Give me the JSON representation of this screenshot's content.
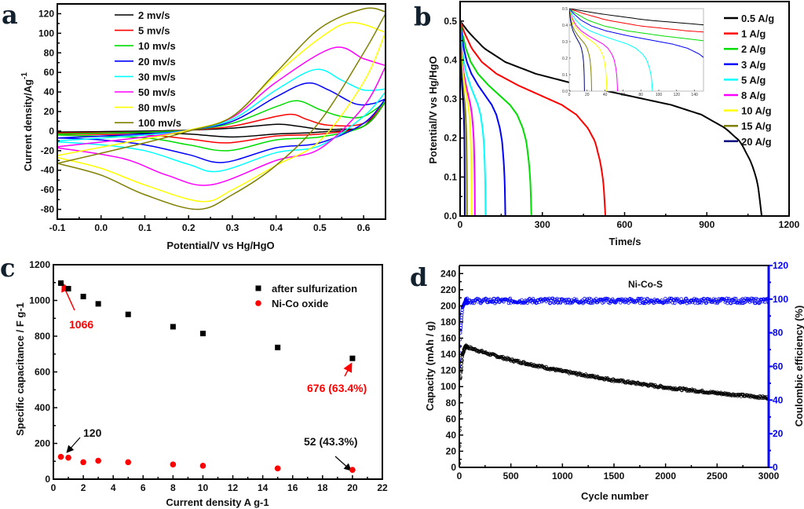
{
  "chart_data": [
    {
      "panel_label": "a",
      "type": "line",
      "title": "",
      "xlabel": "Potential/V vs Hg/HgO",
      "ylabel": "Current density/Ag",
      "ylabel_sup": "-1",
      "xlim": [
        -0.1,
        0.65
      ],
      "ylim": [
        -90,
        130
      ],
      "xticks": [
        "-0.1",
        "0.0",
        "0.1",
        "0.2",
        "0.3",
        "0.4",
        "0.5",
        "0.6"
      ],
      "yticks": [
        "-80",
        "-60",
        "-40",
        "-20",
        "0",
        "20",
        "40",
        "60",
        "80",
        "100",
        "120"
      ],
      "legend_position": "top-left",
      "series": [
        {
          "name": "2 mv/s",
          "color": "#000000",
          "forward": [
            [
              -0.1,
              -1
            ],
            [
              0.1,
              0
            ],
            [
              0.2,
              1
            ],
            [
              0.3,
              3
            ],
            [
              0.4,
              7
            ],
            [
              0.45,
              5
            ],
            [
              0.5,
              2
            ],
            [
              0.55,
              2
            ],
            [
              0.6,
              5
            ],
            [
              0.65,
              30
            ]
          ],
          "reverse": [
            [
              0.65,
              30
            ],
            [
              0.6,
              5
            ],
            [
              0.5,
              -1
            ],
            [
              0.4,
              -3
            ],
            [
              0.3,
              -6
            ],
            [
              0.2,
              -3
            ],
            [
              0.1,
              -2
            ],
            [
              -0.1,
              -2
            ]
          ]
        },
        {
          "name": "5 mv/s",
          "color": "#ff0000",
          "forward": [
            [
              -0.1,
              -2
            ],
            [
              0.1,
              -1
            ],
            [
              0.2,
              1
            ],
            [
              0.3,
              5
            ],
            [
              0.4,
              15
            ],
            [
              0.44,
              17
            ],
            [
              0.47,
              12
            ],
            [
              0.52,
              6
            ],
            [
              0.6,
              8
            ],
            [
              0.65,
              30
            ]
          ],
          "reverse": [
            [
              0.65,
              30
            ],
            [
              0.6,
              5
            ],
            [
              0.5,
              -3
            ],
            [
              0.4,
              -5
            ],
            [
              0.29,
              -12
            ],
            [
              0.2,
              -8
            ],
            [
              0.1,
              -4
            ],
            [
              -0.1,
              -3
            ]
          ]
        },
        {
          "name": "10 mv/s",
          "color": "#00dd00",
          "forward": [
            [
              -0.1,
              -3
            ],
            [
              0.1,
              -1
            ],
            [
              0.2,
              1
            ],
            [
              0.3,
              8
            ],
            [
              0.4,
              25
            ],
            [
              0.45,
              31
            ],
            [
              0.5,
              22
            ],
            [
              0.55,
              15
            ],
            [
              0.6,
              15
            ],
            [
              0.65,
              30
            ]
          ],
          "reverse": [
            [
              0.65,
              30
            ],
            [
              0.6,
              5
            ],
            [
              0.5,
              -6
            ],
            [
              0.4,
              -9
            ],
            [
              0.29,
              -20
            ],
            [
              0.2,
              -14
            ],
            [
              0.1,
              -7
            ],
            [
              -0.1,
              -4
            ]
          ]
        },
        {
          "name": "20 mv/s",
          "color": "#0000ff",
          "forward": [
            [
              -0.1,
              -7
            ],
            [
              0.1,
              -3
            ],
            [
              0.2,
              1
            ],
            [
              0.3,
              10
            ],
            [
              0.4,
              35
            ],
            [
              0.47,
              49
            ],
            [
              0.52,
              42
            ],
            [
              0.58,
              28
            ],
            [
              0.62,
              28
            ],
            [
              0.65,
              33
            ]
          ],
          "reverse": [
            [
              0.65,
              33
            ],
            [
              0.6,
              8
            ],
            [
              0.5,
              -12
            ],
            [
              0.4,
              -17
            ],
            [
              0.28,
              -32
            ],
            [
              0.2,
              -24
            ],
            [
              0.1,
              -14
            ],
            [
              0,
              -9
            ],
            [
              -0.1,
              -7
            ]
          ]
        },
        {
          "name": "30 mv/s",
          "color": "#00ffff",
          "forward": [
            [
              -0.1,
              -10
            ],
            [
              0.1,
              -4
            ],
            [
              0.2,
              1
            ],
            [
              0.3,
              12
            ],
            [
              0.4,
              42
            ],
            [
              0.49,
              63
            ],
            [
              0.55,
              52
            ],
            [
              0.6,
              42
            ],
            [
              0.65,
              43
            ]
          ],
          "reverse": [
            [
              0.65,
              40
            ],
            [
              0.6,
              15
            ],
            [
              0.5,
              -15
            ],
            [
              0.4,
              -22
            ],
            [
              0.27,
              -41
            ],
            [
              0.2,
              -34
            ],
            [
              0.1,
              -20
            ],
            [
              0,
              -14
            ],
            [
              -0.1,
              -11
            ]
          ]
        },
        {
          "name": "50 mv/s",
          "color": "#ff00ff",
          "forward": [
            [
              -0.1,
              -16
            ],
            [
              0.1,
              -6
            ],
            [
              0.2,
              1
            ],
            [
              0.3,
              14
            ],
            [
              0.4,
              50
            ],
            [
              0.53,
              85
            ],
            [
              0.6,
              74
            ],
            [
              0.65,
              67
            ]
          ],
          "reverse": [
            [
              0.65,
              66
            ],
            [
              0.6,
              25
            ],
            [
              0.5,
              -18
            ],
            [
              0.4,
              -30
            ],
            [
              0.25,
              -55
            ],
            [
              0.15,
              -45
            ],
            [
              0.05,
              -28
            ],
            [
              -0.1,
              -17
            ]
          ]
        },
        {
          "name": "80 mv/s",
          "color": "#ffff00",
          "forward": [
            [
              -0.1,
              -25
            ],
            [
              0.1,
              -8
            ],
            [
              0.2,
              1
            ],
            [
              0.3,
              15
            ],
            [
              0.4,
              58
            ],
            [
              0.5,
              95
            ],
            [
              0.57,
              111
            ],
            [
              0.65,
              101
            ]
          ],
          "reverse": [
            [
              0.65,
              101
            ],
            [
              0.6,
              50
            ],
            [
              0.5,
              -10
            ],
            [
              0.4,
              -35
            ],
            [
              0.3,
              -60
            ],
            [
              0.23,
              -72
            ],
            [
              0.1,
              -55
            ],
            [
              0,
              -38
            ],
            [
              -0.1,
              -27
            ]
          ]
        },
        {
          "name": "100 mv/s",
          "color": "#808000",
          "forward": [
            [
              -0.1,
              -33
            ],
            [
              0.1,
              -12
            ],
            [
              0.2,
              0
            ],
            [
              0.3,
              15
            ],
            [
              0.4,
              60
            ],
            [
              0.5,
              105
            ],
            [
              0.6,
              125
            ],
            [
              0.65,
              122
            ]
          ],
          "reverse": [
            [
              0.65,
              120
            ],
            [
              0.6,
              80
            ],
            [
              0.5,
              10
            ],
            [
              0.4,
              -35
            ],
            [
              0.3,
              -65
            ],
            [
              0.22,
              -80
            ],
            [
              0.1,
              -65
            ],
            [
              0,
              -45
            ],
            [
              -0.1,
              -33
            ]
          ]
        }
      ]
    },
    {
      "panel_label": "b",
      "type": "line",
      "title": "",
      "xlabel": "Time/s",
      "ylabel": "Potential/V vs Hg/HgO",
      "xlim": [
        0,
        1200
      ],
      "ylim": [
        0,
        0.55
      ],
      "xticks": [
        "0",
        "300",
        "600",
        "900",
        "1200"
      ],
      "yticks": [
        "0.0",
        "0.1",
        "0.2",
        "0.3",
        "0.4",
        "0.5"
      ],
      "legend_position": "top-right",
      "discharge_profile": {
        "time_fraction": [
          0,
          0.03,
          0.08,
          0.15,
          0.25,
          0.4,
          0.55,
          0.7,
          0.8,
          0.88,
          0.93,
          0.97,
          0.99,
          1
        ],
        "potential": [
          0.5,
          0.47,
          0.43,
          0.395,
          0.365,
          0.335,
          0.31,
          0.285,
          0.26,
          0.225,
          0.19,
          0.13,
          0.07,
          0
        ]
      },
      "series": [
        {
          "name": "0.5 A/g",
          "color": "#000000",
          "discharge_time": 1100
        },
        {
          "name": "1 A/g",
          "color": "#ff0000",
          "discharge_time": 530
        },
        {
          "name": "2 A/g",
          "color": "#00dd00",
          "discharge_time": 260
        },
        {
          "name": "3 A/g",
          "color": "#0000ff",
          "discharge_time": 165
        },
        {
          "name": "5 A/g",
          "color": "#00ffff",
          "discharge_time": 93
        },
        {
          "name": "8 A/g",
          "color": "#ff00ff",
          "discharge_time": 54
        },
        {
          "name": "10 A/g",
          "color": "#ffff00",
          "discharge_time": 42
        },
        {
          "name": "15 A/g",
          "color": "#808000",
          "discharge_time": 25
        },
        {
          "name": "20 A/g",
          "color": "#000080",
          "discharge_time": 17
        }
      ],
      "inset": {
        "xlim": [
          0,
          150
        ],
        "ylim": [
          0,
          0.5
        ],
        "xticks": [
          "0",
          "20",
          "40",
          "60",
          "80",
          "100",
          "120",
          "140"
        ],
        "yticks": [
          "0.0",
          "0.1",
          "0.2",
          "0.3",
          "0.4",
          "0.5"
        ]
      }
    },
    {
      "panel_label": "c",
      "type": "scatter",
      "title": "",
      "xlabel": "Current density A g-1",
      "ylabel": "Specific capacitance / F g-1",
      "xlim": [
        0,
        22
      ],
      "ylim": [
        0,
        1200
      ],
      "xticks": [
        "0",
        "2",
        "4",
        "6",
        "8",
        "10",
        "12",
        "14",
        "16",
        "18",
        "20",
        "22"
      ],
      "yticks": [
        "0",
        "200",
        "400",
        "600",
        "800",
        "1000",
        "1200"
      ],
      "legend_position": "top-right",
      "series": [
        {
          "name": "after sulfurization",
          "color": "#000000",
          "marker": "square",
          "x": [
            0.5,
            1,
            2,
            3,
            5,
            8,
            10,
            15,
            20
          ],
          "y": [
            1097,
            1066,
            1022,
            981,
            922,
            853,
            815,
            737,
            676
          ]
        },
        {
          "name": "Ni-Co oxide",
          "color": "#ff0000",
          "marker": "circle",
          "x": [
            0.5,
            1,
            2,
            3,
            5,
            8,
            10,
            15,
            20
          ],
          "y": [
            125,
            120,
            95,
            103,
            95,
            82,
            75,
            60,
            52
          ]
        }
      ],
      "annotations": [
        {
          "text": "1066",
          "color": "#ff0000"
        },
        {
          "text": "676 (63.4%)",
          "color": "#ff0000"
        },
        {
          "text": "120",
          "color": "#000000"
        },
        {
          "text": "52 (43.3%)",
          "color": "#000000"
        }
      ]
    },
    {
      "panel_label": "d",
      "type": "scatter",
      "title": "Ni-Co-S",
      "xlabel": "Cycle number",
      "ylabel": "Capacity (mAh / g)",
      "ylabel_right": "Coulombic efficiency (%)",
      "xlim": [
        0,
        3000
      ],
      "ylim": [
        0,
        250
      ],
      "ylim_right": [
        0,
        120
      ],
      "xticks": [
        "0",
        "500",
        "1000",
        "1500",
        "2000",
        "2500",
        "3000"
      ],
      "yticks": [
        "0",
        "20",
        "40",
        "60",
        "80",
        "100",
        "120",
        "140",
        "160",
        "180",
        "200",
        "220",
        "240"
      ],
      "yticks_right": [
        "0",
        "20",
        "40",
        "60",
        "80",
        "100",
        "120"
      ],
      "right_axis_color": "#0000ff",
      "series": [
        {
          "name": "Capacity",
          "color": "#000000",
          "axis": "left",
          "x": [
            0,
            10,
            30,
            60,
            100,
            300,
            500,
            1000,
            1500,
            2000,
            2500,
            3000
          ],
          "y": [
            5,
            110,
            140,
            150,
            148,
            140,
            133,
            119,
            108,
            99,
            92,
            86
          ]
        },
        {
          "name": "Coulombic efficiency",
          "color": "#0000ff",
          "axis": "right",
          "x": [
            0,
            10,
            30,
            60,
            3000
          ],
          "y": [
            60,
            80,
            95,
            99,
            99
          ]
        }
      ]
    }
  ]
}
